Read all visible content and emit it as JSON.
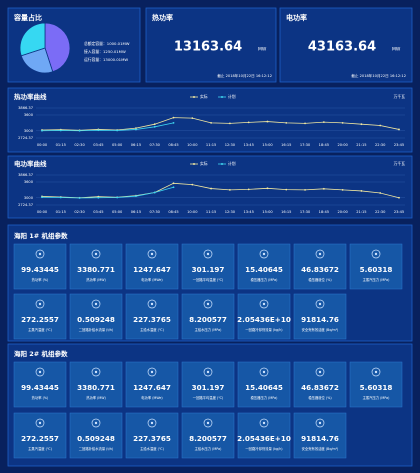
{
  "capacity": {
    "title": "容量占比",
    "items": [
      "总额定容量：1000.01MW",
      "接入容量：1250.01MW",
      "运行容量：13000.01MW"
    ]
  },
  "heat_power": {
    "title": "热功率",
    "value": "13163.64",
    "unit": "MW",
    "footer": "截止 2018年10月22日 16:12:12"
  },
  "electric_power": {
    "title": "电功率",
    "value": "43163.64",
    "unit": "MW",
    "footer": "截止 2018年10月22日 16:12:12"
  },
  "chart_data": [
    {
      "type": "pie",
      "values": [
        45,
        25,
        30
      ],
      "colors": [
        "#7b6cf6",
        "#6fa8f5",
        "#36d8f2"
      ]
    },
    {
      "type": "line",
      "title": "热功率曲线",
      "unit": "万千瓦",
      "categories": [
        "00:00",
        "01:15",
        "02:30",
        "03:45",
        "05:00",
        "06:15",
        "07:30",
        "08:45",
        "10:00",
        "11:15",
        "12:30",
        "13:45",
        "15:00",
        "16:15",
        "17:30",
        "18:45",
        "20:00",
        "21:15",
        "22:30",
        "23:45"
      ],
      "series": [
        {
          "name": "实际",
          "color": "#f3e9a0",
          "values": [
            3030,
            3040,
            3020,
            3050,
            3030,
            3100,
            3250,
            3500,
            3480,
            3300,
            3280,
            3320,
            3350,
            3300,
            3280,
            3330,
            3300,
            3250,
            3200,
            3050
          ]
        },
        {
          "name": "计划",
          "color": "#3fd6f0",
          "values": [
            3000,
            3010,
            3000,
            3020,
            3010,
            3050,
            3150,
            3300,
            null,
            null,
            null,
            null,
            null,
            null,
            null,
            null,
            null,
            null,
            null,
            null
          ]
        }
      ],
      "ylim": [
        2724.37,
        3866.37
      ],
      "yticks": [
        2724.37,
        3000,
        3600,
        3866.37
      ],
      "grid": true
    },
    {
      "type": "line",
      "title": "电功率曲线",
      "unit": "万千瓦",
      "categories": [
        "00:00",
        "01:15",
        "02:30",
        "03:45",
        "05:00",
        "06:15",
        "07:30",
        "08:45",
        "10:00",
        "11:15",
        "12:30",
        "13:45",
        "15:00",
        "16:15",
        "17:30",
        "18:45",
        "20:00",
        "21:15",
        "22:30",
        "23:45"
      ],
      "series": [
        {
          "name": "实际",
          "color": "#f3e9a0",
          "values": [
            3050,
            3030,
            3000,
            3040,
            3020,
            3080,
            3200,
            3550,
            3500,
            3350,
            3300,
            3320,
            3360,
            3310,
            3300,
            3340,
            3300,
            3260,
            3180,
            3000
          ]
        },
        {
          "name": "计划",
          "color": "#3fd6f0",
          "values": [
            3020,
            3010,
            2990,
            3000,
            3010,
            3060,
            3200,
            3400,
            null,
            null,
            null,
            null,
            null,
            null,
            null,
            null,
            null,
            null,
            null,
            null
          ]
        }
      ],
      "ylim": [
        2724.37,
        3866.37
      ],
      "yticks": [
        2724.37,
        3000,
        3600,
        3866.37
      ],
      "grid": true
    }
  ],
  "units": [
    {
      "title": "海阳 1# 机组参数",
      "rows": [
        [
          {
            "value": "99.43445",
            "label": "热功率 (%)"
          },
          {
            "value": "3380.771",
            "label": "热功率 (MW)"
          },
          {
            "value": "1247.647",
            "label": "电功率 (MWe)"
          },
          {
            "value": "301.197",
            "label": "一回路平均温度 (℃)"
          },
          {
            "value": "15.40645",
            "label": "稳压器压力 (MPa)"
          },
          {
            "value": "46.83672",
            "label": "稳压器液位 (%)"
          },
          {
            "value": "5.60318",
            "label": "主蒸汽压力 (MPa)"
          }
        ],
        [
          {
            "value": "272.2557",
            "label": "主蒸汽温度 (℃)"
          },
          {
            "value": "0.509248",
            "label": "二回路补给水流量 (t/h)"
          },
          {
            "value": "227.3765",
            "label": "主给水温度 (℃)"
          },
          {
            "value": "8.200577",
            "label": "主给水压力 (MPa)"
          },
          {
            "value": "2.05436E+10",
            "label": "一回路冷却剂流量 (kg/h)"
          },
          {
            "value": "91814.76",
            "label": "安全壳有效活度 (Bq/m³)"
          }
        ]
      ]
    },
    {
      "title": "海阳 2# 机组参数",
      "rows": [
        [
          {
            "value": "99.43445",
            "label": "热功率 (%)"
          },
          {
            "value": "3380.771",
            "label": "热功率 (MW)"
          },
          {
            "value": "1247.647",
            "label": "电功率 (MWe)"
          },
          {
            "value": "301.197",
            "label": "一回路平均温度 (℃)"
          },
          {
            "value": "15.40645",
            "label": "稳压器压力 (MPa)"
          },
          {
            "value": "46.83672",
            "label": "稳压器液位 (%)"
          },
          {
            "value": "5.60318",
            "label": "主蒸汽压力 (MPa)"
          }
        ],
        [
          {
            "value": "272.2557",
            "label": "主蒸汽温度 (℃)"
          },
          {
            "value": "0.509248",
            "label": "二回路补给水流量 (t/h)"
          },
          {
            "value": "227.3765",
            "label": "主给水温度 (℃)"
          },
          {
            "value": "8.200577",
            "label": "主给水压力 (MPa)"
          },
          {
            "value": "2.05436E+10",
            "label": "一回路冷却剂流量 (kg/h)"
          },
          {
            "value": "91814.76",
            "label": "安全壳有效活度 (Bq/m³)"
          }
        ]
      ]
    }
  ]
}
